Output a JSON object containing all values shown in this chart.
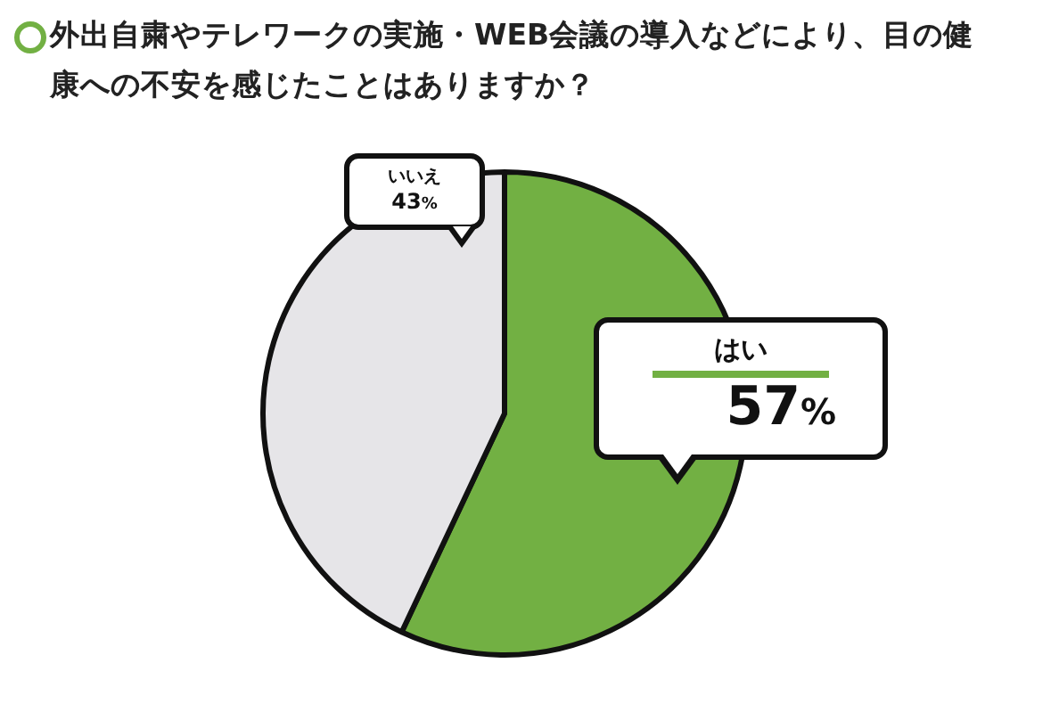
{
  "chart_data": {
    "type": "pie",
    "title": "外出自粛やテレワークの実施・WEB会議の導入などにより、目の健康への不安を感じたことはありますか？",
    "categories": [
      "はい",
      "いいえ"
    ],
    "values": [
      57,
      43
    ],
    "colors": [
      "#72b043",
      "#e6e5e8"
    ],
    "value_labels": [
      "57%",
      "43%"
    ],
    "legend": false
  }
}
